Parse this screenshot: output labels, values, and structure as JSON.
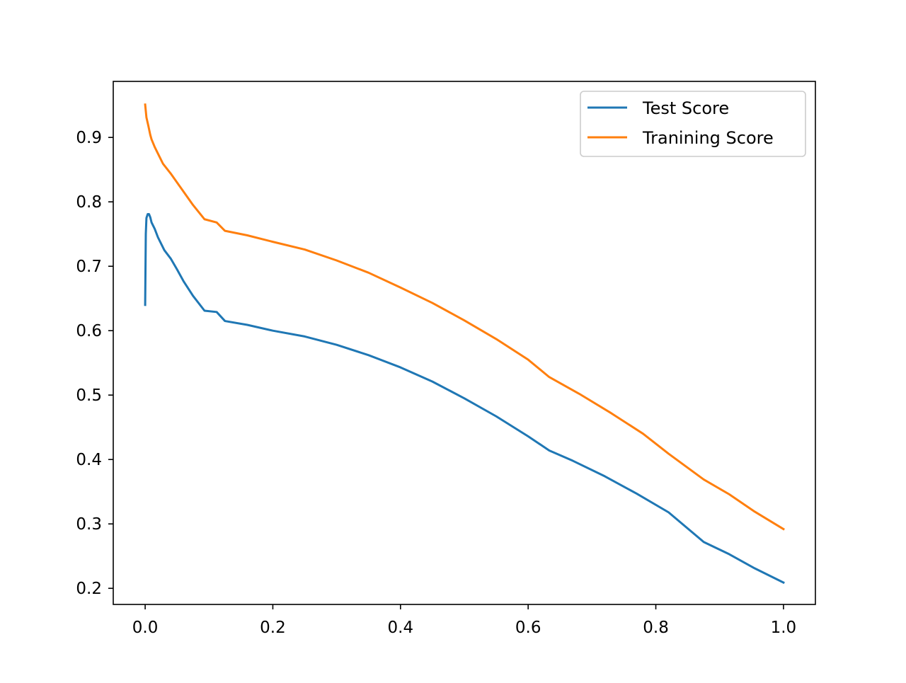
{
  "chart_data": {
    "type": "line",
    "title": "",
    "xlabel": "",
    "ylabel": "",
    "xlim": [
      -0.05,
      1.05
    ],
    "ylim": [
      0.175,
      0.987
    ],
    "xticks": [
      0.0,
      0.2,
      0.4,
      0.6,
      0.8,
      1.0
    ],
    "xtick_labels": [
      "0.0",
      "0.2",
      "0.4",
      "0.6",
      "0.8",
      "1.0"
    ],
    "yticks": [
      0.2,
      0.3,
      0.4,
      0.5,
      0.6,
      0.7,
      0.8,
      0.9
    ],
    "ytick_labels": [
      "0.2",
      "0.3",
      "0.4",
      "0.5",
      "0.6",
      "0.7",
      "0.8",
      "0.9"
    ],
    "grid": false,
    "legend_position": "top-right",
    "series": [
      {
        "name": "Test Score",
        "color": "#1f77b4",
        "points": [
          [
            0.0,
            0.64
          ],
          [
            0.001,
            0.75
          ],
          [
            0.002,
            0.775
          ],
          [
            0.004,
            0.781
          ],
          [
            0.006,
            0.781
          ],
          [
            0.008,
            0.776
          ],
          [
            0.01,
            0.768
          ],
          [
            0.015,
            0.758
          ],
          [
            0.02,
            0.745
          ],
          [
            0.03,
            0.725
          ],
          [
            0.04,
            0.712
          ],
          [
            0.05,
            0.695
          ],
          [
            0.06,
            0.677
          ],
          [
            0.075,
            0.654
          ],
          [
            0.093,
            0.631
          ],
          [
            0.112,
            0.629
          ],
          [
            0.125,
            0.615
          ],
          [
            0.16,
            0.609
          ],
          [
            0.2,
            0.6
          ],
          [
            0.25,
            0.591
          ],
          [
            0.3,
            0.578
          ],
          [
            0.35,
            0.562
          ],
          [
            0.4,
            0.543
          ],
          [
            0.45,
            0.521
          ],
          [
            0.5,
            0.495
          ],
          [
            0.55,
            0.467
          ],
          [
            0.6,
            0.436
          ],
          [
            0.633,
            0.414
          ],
          [
            0.67,
            0.398
          ],
          [
            0.72,
            0.374
          ],
          [
            0.77,
            0.347
          ],
          [
            0.82,
            0.318
          ],
          [
            0.875,
            0.272
          ],
          [
            0.915,
            0.253
          ],
          [
            0.955,
            0.231
          ],
          [
            1.0,
            0.209
          ]
        ]
      },
      {
        "name": "Tranining Score",
        "color": "#ff7f0e",
        "points": [
          [
            0.0,
            0.951
          ],
          [
            0.002,
            0.931
          ],
          [
            0.005,
            0.918
          ],
          [
            0.008,
            0.904
          ],
          [
            0.01,
            0.897
          ],
          [
            0.015,
            0.885
          ],
          [
            0.02,
            0.875
          ],
          [
            0.028,
            0.859
          ],
          [
            0.04,
            0.844
          ],
          [
            0.055,
            0.823
          ],
          [
            0.075,
            0.795
          ],
          [
            0.093,
            0.773
          ],
          [
            0.112,
            0.768
          ],
          [
            0.125,
            0.755
          ],
          [
            0.16,
            0.748
          ],
          [
            0.2,
            0.738
          ],
          [
            0.25,
            0.726
          ],
          [
            0.3,
            0.709
          ],
          [
            0.35,
            0.69
          ],
          [
            0.4,
            0.667
          ],
          [
            0.45,
            0.643
          ],
          [
            0.5,
            0.616
          ],
          [
            0.55,
            0.587
          ],
          [
            0.6,
            0.555
          ],
          [
            0.633,
            0.528
          ],
          [
            0.68,
            0.502
          ],
          [
            0.73,
            0.472
          ],
          [
            0.78,
            0.44
          ],
          [
            0.82,
            0.409
          ],
          [
            0.875,
            0.369
          ],
          [
            0.915,
            0.346
          ],
          [
            0.955,
            0.319
          ],
          [
            1.0,
            0.292
          ]
        ]
      }
    ]
  }
}
